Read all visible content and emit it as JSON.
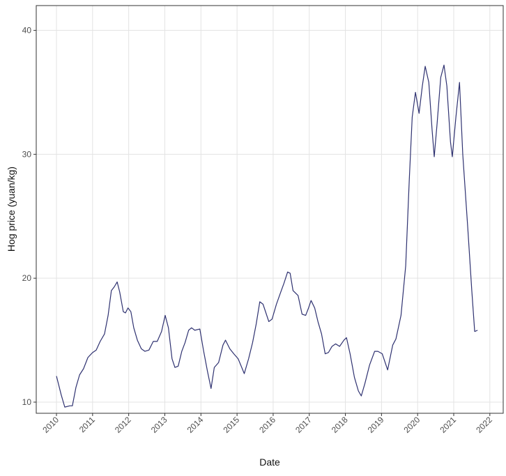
{
  "chart_data": {
    "type": "line",
    "x_label": "Date",
    "y_label": "Hog price (yuan/kg)",
    "xlim": [
      2009.44,
      2022.37
    ],
    "ylim": [
      9.1,
      42.0
    ],
    "xticks": [
      2010,
      2011,
      2012,
      2013,
      2014,
      2015,
      2016,
      2017,
      2018,
      2019,
      2020,
      2021,
      2022
    ],
    "yticks": [
      10,
      20,
      30,
      40
    ],
    "grid": true,
    "series": [
      {
        "color": "#2e3170",
        "x": [
          2010.0,
          2010.13,
          2010.23,
          2010.37,
          2010.44,
          2010.54,
          2010.64,
          2010.75,
          2010.87,
          2011.0,
          2011.1,
          2011.21,
          2011.33,
          2011.43,
          2011.52,
          2011.6,
          2011.68,
          2011.75,
          2011.85,
          2011.91,
          2011.98,
          2012.06,
          2012.14,
          2012.24,
          2012.35,
          2012.45,
          2012.56,
          2012.68,
          2012.79,
          2012.91,
          2013.01,
          2013.1,
          2013.2,
          2013.28,
          2013.37,
          2013.47,
          2013.56,
          2013.66,
          2013.74,
          2013.83,
          2013.97,
          2014.07,
          2014.18,
          2014.28,
          2014.37,
          2014.49,
          2014.61,
          2014.68,
          2014.8,
          2014.91,
          2015.03,
          2015.13,
          2015.2,
          2015.32,
          2015.43,
          2015.53,
          2015.63,
          2015.72,
          2015.88,
          2015.97,
          2016.09,
          2016.2,
          2016.3,
          2016.4,
          2016.47,
          2016.55,
          2016.69,
          2016.8,
          2016.9,
          2016.98,
          2017.05,
          2017.15,
          2017.24,
          2017.34,
          2017.44,
          2017.53,
          2017.63,
          2017.73,
          2017.84,
          2017.96,
          2018.03,
          2018.13,
          2018.25,
          2018.36,
          2018.44,
          2018.54,
          2018.67,
          2018.81,
          2018.9,
          2019.02,
          2019.17,
          2019.31,
          2019.4,
          2019.54,
          2019.67,
          2019.77,
          2019.85,
          2019.94,
          2020.04,
          2020.13,
          2020.21,
          2020.31,
          2020.4,
          2020.46,
          2020.54,
          2020.64,
          2020.73,
          2020.81,
          2020.91,
          2020.96,
          2021.06,
          2021.16,
          2021.25,
          2021.39,
          2021.5,
          2021.58,
          2021.66
        ],
        "values": [
          12.1,
          10.6,
          9.6,
          9.7,
          9.7,
          11.2,
          12.2,
          12.7,
          13.6,
          14.0,
          14.2,
          14.9,
          15.5,
          17.0,
          19.0,
          19.3,
          19.7,
          18.9,
          17.3,
          17.2,
          17.6,
          17.3,
          16.0,
          15.0,
          14.3,
          14.1,
          14.2,
          14.9,
          14.9,
          15.7,
          17.0,
          16.0,
          13.5,
          12.8,
          12.9,
          14.1,
          14.8,
          15.8,
          16.0,
          15.8,
          15.9,
          14.2,
          12.5,
          11.1,
          12.8,
          13.2,
          14.6,
          15.0,
          14.3,
          13.9,
          13.5,
          12.8,
          12.3,
          13.5,
          14.8,
          16.3,
          18.1,
          17.9,
          16.5,
          16.7,
          17.9,
          18.8,
          19.6,
          20.5,
          20.4,
          19.0,
          18.6,
          17.1,
          17.0,
          17.6,
          18.2,
          17.6,
          16.5,
          15.5,
          13.9,
          14.0,
          14.5,
          14.7,
          14.5,
          15.0,
          15.2,
          13.9,
          12.0,
          10.9,
          10.5,
          11.5,
          13.0,
          14.1,
          14.1,
          13.9,
          12.6,
          14.6,
          15.1,
          17.0,
          21.0,
          28.0,
          33.0,
          35.0,
          33.3,
          35.5,
          37.1,
          35.8,
          32.0,
          29.8,
          32.5,
          36.2,
          37.2,
          35.5,
          31.0,
          29.8,
          33.0,
          35.8,
          30.0,
          24.0,
          19.0,
          15.7,
          15.8
        ]
      }
    ]
  }
}
